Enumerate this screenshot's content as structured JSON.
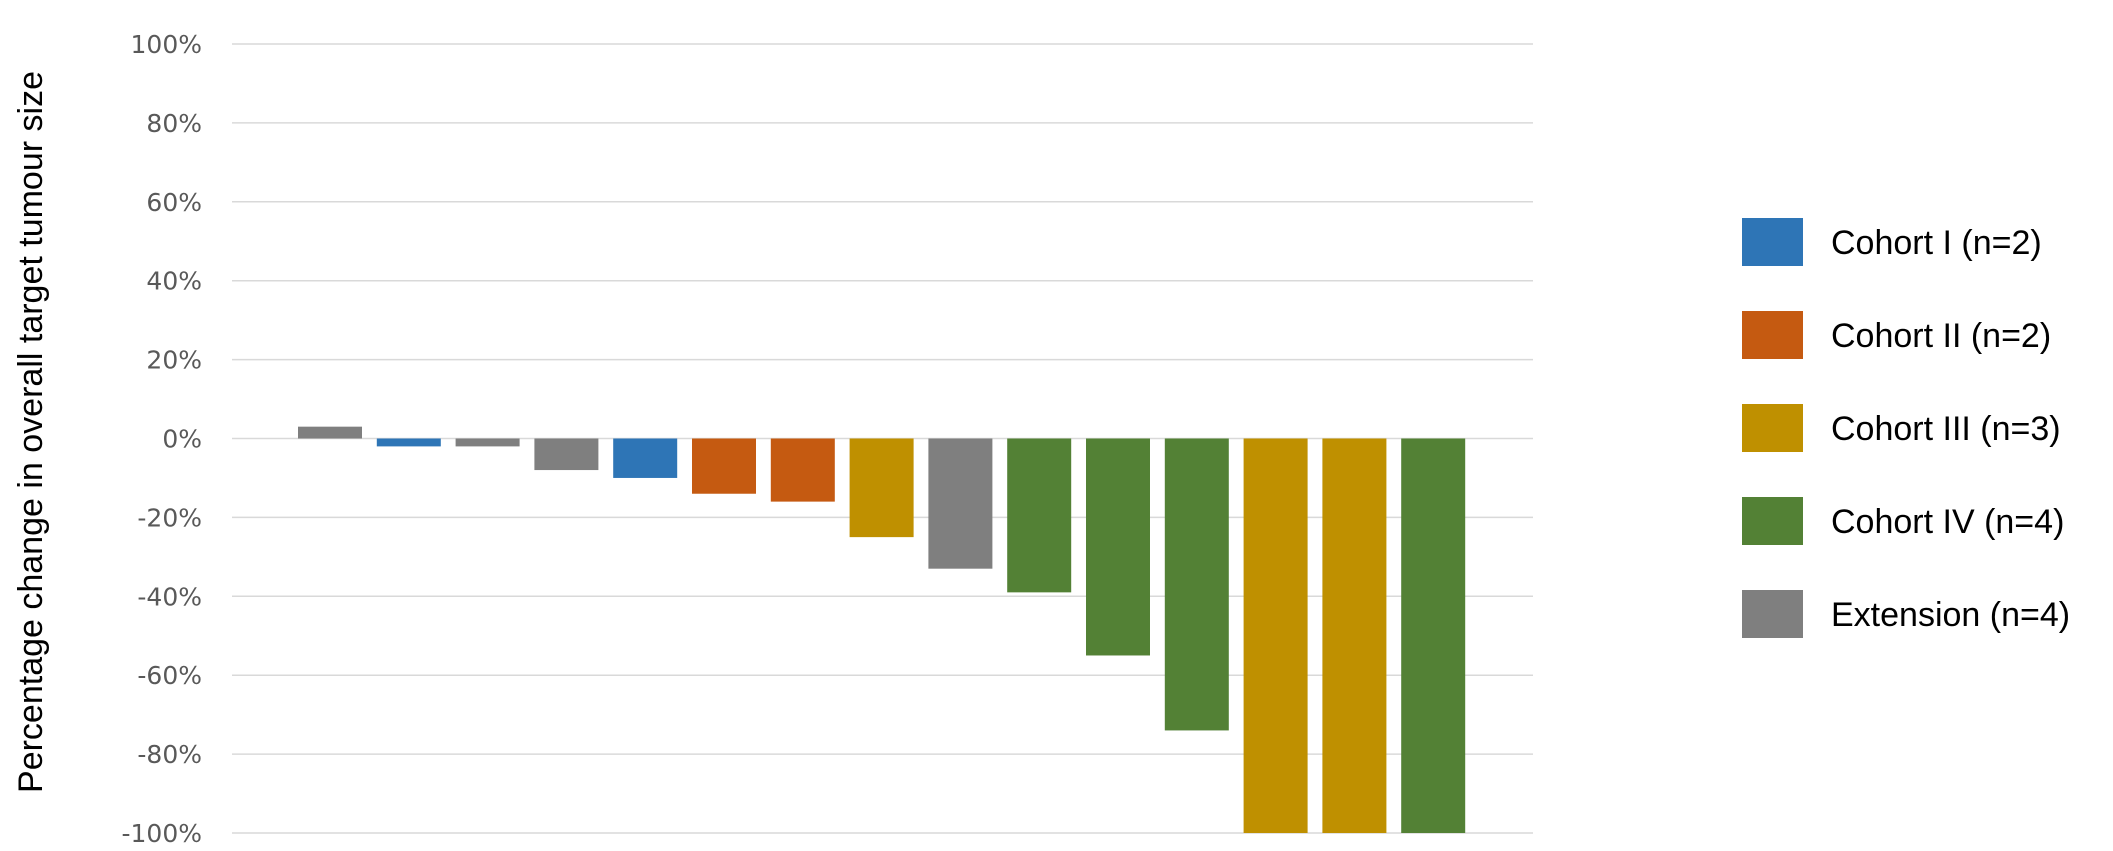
{
  "chart_data": {
    "type": "bar",
    "title": "",
    "xlabel": "",
    "ylabel": "Percentage change in overall target tumour size",
    "ylim": [
      -100,
      100
    ],
    "ytick_step": 20,
    "ytick_suffix": "%",
    "grid": true,
    "legend_position": "right",
    "groups": [
      {
        "name": "Cohort I (n=2)",
        "color": "#2e75b6"
      },
      {
        "name": "Cohort II (n=2)",
        "color": "#c55a11"
      },
      {
        "name": "Cohort III (n=3)",
        "color": "#bf9000"
      },
      {
        "name": "Cohort IV (n=4)",
        "color": "#538135"
      },
      {
        "name": "Extension (n=4)",
        "color": "#7f7f7f"
      }
    ],
    "bars": [
      {
        "value": 3,
        "group": 4
      },
      {
        "value": -2,
        "group": 0
      },
      {
        "value": -2,
        "group": 4
      },
      {
        "value": -8,
        "group": 4
      },
      {
        "value": -10,
        "group": 0
      },
      {
        "value": -14,
        "group": 1
      },
      {
        "value": -16,
        "group": 1
      },
      {
        "value": -25,
        "group": 2
      },
      {
        "value": -33,
        "group": 4
      },
      {
        "value": -39,
        "group": 3
      },
      {
        "value": -55,
        "group": 3
      },
      {
        "value": -74,
        "group": 3
      },
      {
        "value": -100,
        "group": 2
      },
      {
        "value": -100,
        "group": 2
      },
      {
        "value": -100,
        "group": 3
      }
    ]
  }
}
